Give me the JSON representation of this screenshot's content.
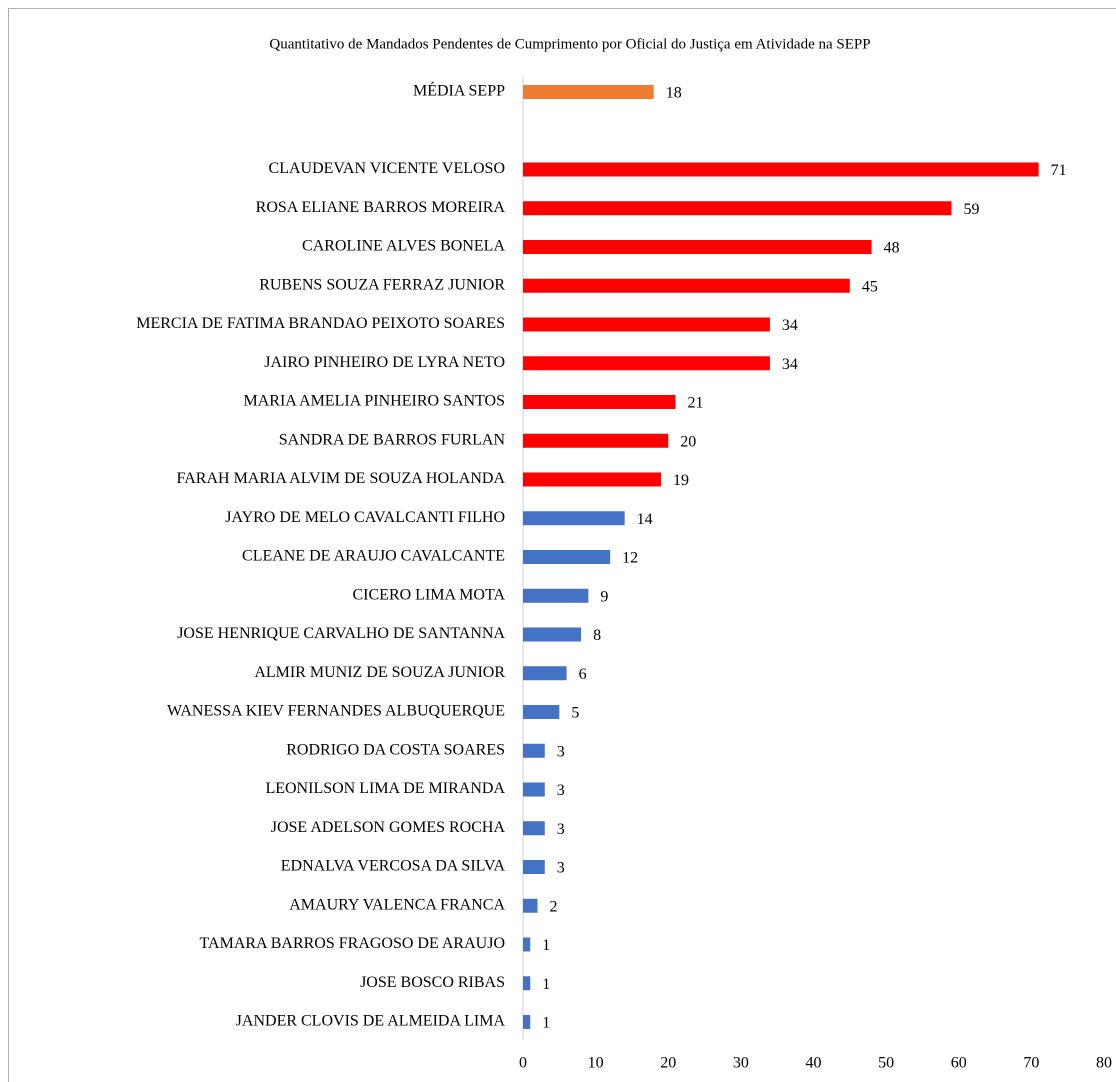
{
  "chart_data": {
    "type": "bar",
    "orientation": "horizontal",
    "title": "Quantitativo de Mandados Pendentes de Cumprimento por Oficial do Justiça em Atividade na SEPP",
    "categories": [
      "MÉDIA SEPP",
      null,
      "CLAUDEVAN VICENTE VELOSO",
      "ROSA ELIANE BARROS MOREIRA",
      "CAROLINE ALVES BONELA",
      "RUBENS SOUZA FERRAZ JUNIOR",
      "MERCIA DE FATIMA BRANDAO PEIXOTO SOARES",
      "JAIRO PINHEIRO DE LYRA NETO",
      "MARIA AMELIA PINHEIRO SANTOS",
      "SANDRA DE BARROS FURLAN",
      "FARAH MARIA ALVIM DE SOUZA HOLANDA",
      "JAYRO DE MELO CAVALCANTI FILHO",
      "CLEANE DE ARAUJO CAVALCANTE",
      "CICERO LIMA MOTA",
      "JOSE HENRIQUE CARVALHO DE SANTANNA",
      "ALMIR MUNIZ DE SOUZA JUNIOR",
      "WANESSA KIEV FERNANDES ALBUQUERQUE",
      "RODRIGO DA COSTA SOARES",
      "LEONILSON LIMA DE MIRANDA",
      "JOSE ADELSON GOMES ROCHA",
      "EDNALVA VERCOSA DA SILVA",
      "AMAURY VALENCA FRANCA",
      "TAMARA BARROS FRAGOSO DE ARAUJO",
      "JOSE BOSCO RIBAS",
      "JANDER CLOVIS DE ALMEIDA LIMA"
    ],
    "values": [
      18,
      null,
      71,
      59,
      48,
      45,
      34,
      34,
      21,
      20,
      19,
      14,
      12,
      9,
      8,
      6,
      5,
      3,
      3,
      3,
      3,
      2,
      1,
      1,
      1
    ],
    "colors": [
      "#ed7d31",
      null,
      "#ff0000",
      "#ff0000",
      "#ff0000",
      "#ff0000",
      "#ff0000",
      "#ff0000",
      "#ff0000",
      "#ff0000",
      "#ff0000",
      "#4472c4",
      "#4472c4",
      "#4472c4",
      "#4472c4",
      "#4472c4",
      "#4472c4",
      "#4472c4",
      "#4472c4",
      "#4472c4",
      "#4472c4",
      "#4472c4",
      "#4472c4",
      "#4472c4",
      "#4472c4"
    ],
    "xlim": [
      0,
      80
    ],
    "xticks": [
      0,
      10,
      20,
      30,
      40,
      50,
      60,
      70,
      80
    ],
    "grid": false
  }
}
